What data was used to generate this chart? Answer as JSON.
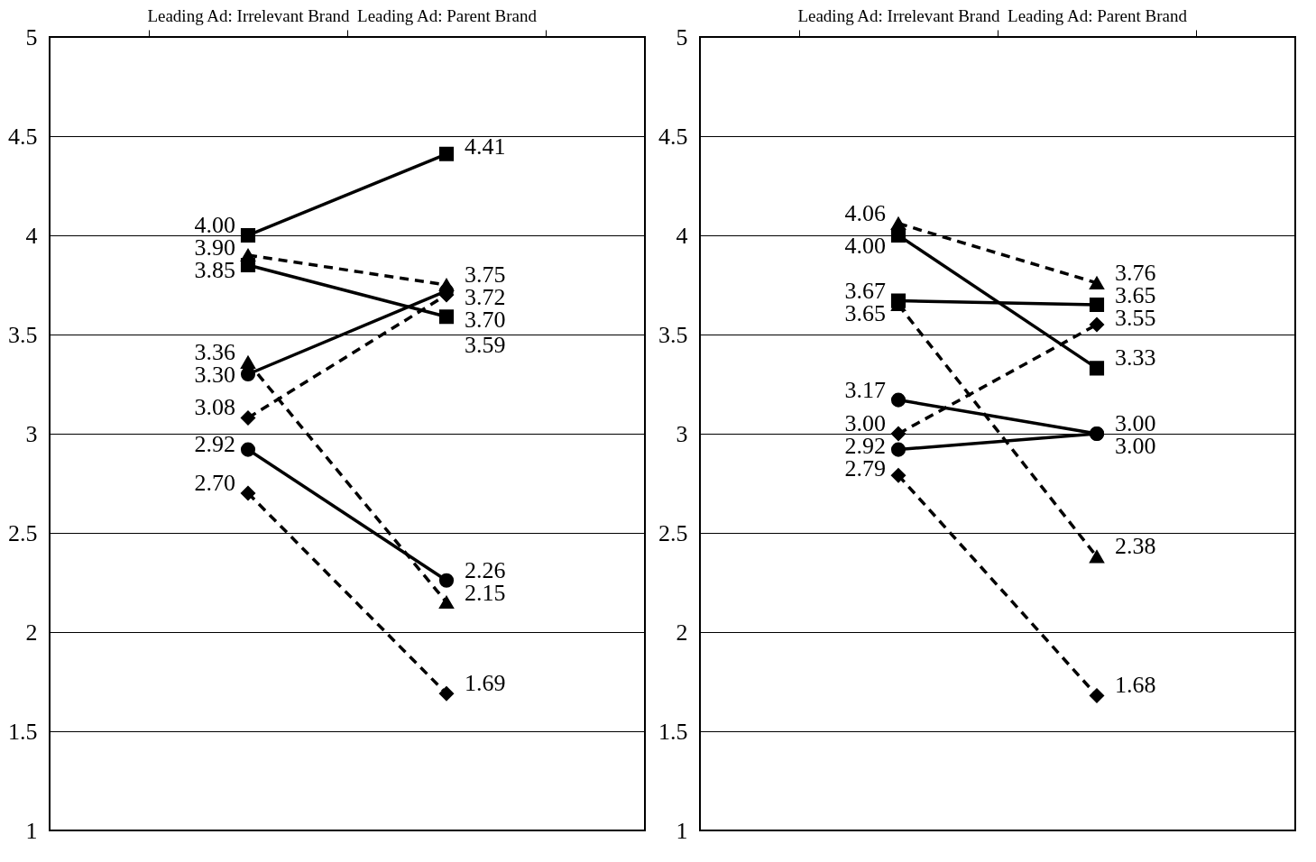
{
  "chart_data": [
    {
      "type": "line",
      "categories": [
        "Leading Ad: Irrelevant Brand",
        "Leading Ad: Parent Brand"
      ],
      "ylim": [
        1,
        5
      ],
      "yticks": [
        1,
        1.5,
        2,
        2.5,
        3,
        3.5,
        4,
        4.5,
        5
      ],
      "grid": "y",
      "series": [
        {
          "color": "#000000",
          "values": [
            4.0,
            4.41
          ],
          "value_labels": [
            "4.00",
            "4.41"
          ],
          "marker": "square",
          "line_style": "solid"
        },
        {
          "color": "#000000",
          "values": [
            3.85,
            3.59
          ],
          "value_labels": [
            "3.85",
            "3.59"
          ],
          "marker": "square",
          "line_style": "solid"
        },
        {
          "color": "#000000",
          "values": [
            3.9,
            3.75
          ],
          "value_labels": [
            "3.90",
            "3.75"
          ],
          "marker": "triangle",
          "line_style": "dashed"
        },
        {
          "color": "#000000",
          "values": [
            3.3,
            3.72
          ],
          "value_labels": [
            "3.30",
            "3.72"
          ],
          "marker": "circle",
          "line_style": "solid"
        },
        {
          "color": "#000000",
          "values": [
            3.08,
            3.7
          ],
          "value_labels": [
            "3.08",
            "3.70"
          ],
          "marker": "diamond",
          "line_style": "dashed"
        },
        {
          "color": "#000000",
          "values": [
            3.36,
            2.15
          ],
          "value_labels": [
            "3.36",
            "2.15"
          ],
          "marker": "triangle",
          "line_style": "dashed"
        },
        {
          "color": "#000000",
          "values": [
            2.92,
            2.26
          ],
          "value_labels": [
            "2.92",
            "2.26"
          ],
          "marker": "circle",
          "line_style": "solid"
        },
        {
          "color": "#000000",
          "values": [
            2.7,
            1.69
          ],
          "value_labels": [
            "2.70",
            "1.69"
          ],
          "marker": "diamond",
          "line_style": "dashed"
        }
      ]
    },
    {
      "type": "line",
      "categories": [
        "Leading Ad: Irrelevant Brand",
        "Leading Ad: Parent Brand"
      ],
      "ylim": [
        1,
        5
      ],
      "yticks": [
        1,
        1.5,
        2,
        2.5,
        3,
        3.5,
        4,
        4.5,
        5
      ],
      "grid": "y",
      "series": [
        {
          "color": "#000000",
          "values": [
            4.06,
            3.76
          ],
          "value_labels": [
            "4.06",
            "3.76"
          ],
          "marker": "triangle",
          "line_style": "dashed"
        },
        {
          "color": "#000000",
          "values": [
            4.0,
            3.33
          ],
          "value_labels": [
            "4.00",
            "3.33"
          ],
          "marker": "square",
          "line_style": "solid"
        },
        {
          "color": "#000000",
          "values": [
            3.67,
            3.65
          ],
          "value_labels": [
            "3.67",
            "3.65"
          ],
          "marker": "square",
          "line_style": "solid"
        },
        {
          "color": "#000000",
          "values": [
            3.65,
            2.38
          ],
          "value_labels": [
            "3.65",
            "2.38"
          ],
          "marker": "triangle",
          "line_style": "dashed"
        },
        {
          "color": "#000000",
          "values": [
            3.17,
            3.0
          ],
          "value_labels": [
            "3.17",
            "3.00"
          ],
          "marker": "circle",
          "line_style": "solid"
        },
        {
          "color": "#000000",
          "values": [
            3.0,
            3.55
          ],
          "value_labels": [
            "3.00",
            "3.55"
          ],
          "marker": "diamond",
          "line_style": "dashed"
        },
        {
          "color": "#000000",
          "values": [
            2.92,
            3.0
          ],
          "value_labels": [
            "2.92",
            "3.00"
          ],
          "marker": "circle",
          "line_style": "solid"
        },
        {
          "color": "#000000",
          "values": [
            2.79,
            1.68
          ],
          "value_labels": [
            "2.79",
            "1.68"
          ],
          "marker": "diamond",
          "line_style": "dashed"
        }
      ]
    }
  ]
}
